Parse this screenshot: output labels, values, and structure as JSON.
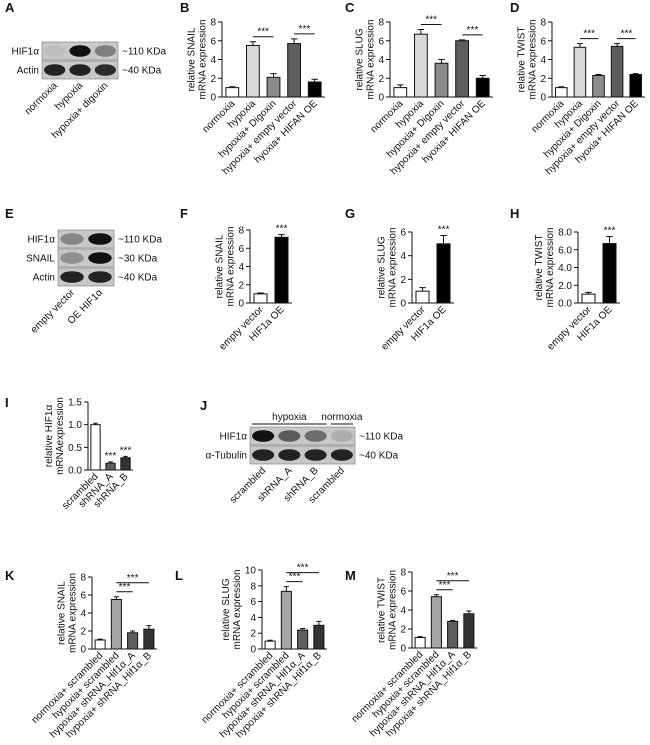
{
  "chart_data": [
    {
      "type": "bar",
      "panel": "B",
      "ylabel": [
        "relative SNAIL",
        "mRNA expression"
      ],
      "categories": [
        "normoxia",
        "hypoxia",
        "hypoxia+ Digoxin",
        "hypoxia+ empty vector",
        "hyoxia+ HIFAN OE"
      ],
      "values": [
        1.0,
        5.5,
        2.1,
        5.7,
        1.6
      ],
      "errors": [
        0.1,
        0.4,
        0.4,
        0.5,
        0.3
      ],
      "colors": [
        "#ffffff",
        "#d9d9d9",
        "#8c8c8c",
        "#5e5e5e",
        "#000000"
      ],
      "ylim": [
        0,
        8
      ],
      "yticks": [
        0,
        2,
        4,
        6,
        8
      ],
      "annotations": [
        {
          "text": "***",
          "categories": [
            1,
            2
          ]
        },
        {
          "text": "***",
          "categories": [
            3,
            4
          ]
        }
      ]
    },
    {
      "type": "bar",
      "panel": "C",
      "ylabel": [
        "relative SLUG",
        "mRNA expression"
      ],
      "categories": [
        "normoxia",
        "hypoxia",
        "hypoxia+ Digoxin",
        "hypoxia+ empty vector",
        "hyoxia+ HIFAN OE"
      ],
      "values": [
        1.0,
        6.7,
        3.6,
        6.0,
        2.0
      ],
      "errors": [
        0.3,
        0.5,
        0.4,
        0.1,
        0.3
      ],
      "colors": [
        "#ffffff",
        "#d9d9d9",
        "#8c8c8c",
        "#5e5e5e",
        "#000000"
      ],
      "ylim": [
        0,
        8
      ],
      "yticks": [
        0,
        2,
        4,
        6,
        8
      ],
      "annotations": [
        {
          "text": "***",
          "categories": [
            1,
            2
          ]
        },
        {
          "text": "***",
          "categories": [
            3,
            4
          ]
        }
      ]
    },
    {
      "type": "bar",
      "panel": "D",
      "ylabel": [
        "relative TWIST",
        "mRNA expression"
      ],
      "categories": [
        "normoxia",
        "hypoxia",
        "hypoxia+ Digoxin",
        "hypoxia+ empty vector",
        "hyoxia+ HIFAN OE"
      ],
      "values": [
        1.0,
        5.3,
        2.3,
        5.4,
        2.4
      ],
      "errors": [
        0.1,
        0.4,
        0.1,
        0.3,
        0.1
      ],
      "colors": [
        "#ffffff",
        "#d9d9d9",
        "#8c8c8c",
        "#5e5e5e",
        "#000000"
      ],
      "ylim": [
        0,
        8
      ],
      "yticks": [
        0,
        2,
        4,
        6,
        8
      ],
      "annotations": [
        {
          "text": "***",
          "categories": [
            1,
            2
          ]
        },
        {
          "text": "***",
          "categories": [
            3,
            4
          ]
        }
      ]
    },
    {
      "type": "bar",
      "panel": "F",
      "ylabel": [
        "relative SNAIL",
        "mRNA expression"
      ],
      "categories": [
        "empty vector",
        "HIF1a OE"
      ],
      "values": [
        1.0,
        7.2
      ],
      "errors": [
        0.1,
        0.3
      ],
      "colors": [
        "#ffffff",
        "#000000"
      ],
      "ylim": [
        0,
        8
      ],
      "yticks": [
        0,
        2,
        4,
        6,
        8
      ],
      "annotations": [
        {
          "text": "***",
          "categories": [
            1
          ]
        }
      ]
    },
    {
      "type": "bar",
      "panel": "G",
      "ylabel": [
        "relative SLUG",
        "mRNA expression"
      ],
      "categories": [
        "empty vector",
        "HIF1a OE"
      ],
      "values": [
        1.0,
        5.0
      ],
      "errors": [
        0.3,
        0.7
      ],
      "colors": [
        "#ffffff",
        "#000000"
      ],
      "ylim": [
        0,
        6
      ],
      "yticks": [
        0,
        2,
        4,
        6
      ],
      "annotations": [
        {
          "text": "***",
          "categories": [
            1
          ]
        }
      ]
    },
    {
      "type": "bar",
      "panel": "H",
      "ylabel": [
        "relative TWIST",
        "mRNA expression"
      ],
      "categories": [
        "empty vector",
        "HIF1a OE"
      ],
      "values": [
        1.0,
        6.7
      ],
      "errors": [
        0.2,
        0.8
      ],
      "colors": [
        "#ffffff",
        "#000000"
      ],
      "ylim": [
        0,
        8
      ],
      "yticks": [
        {
          "value": 0,
          "label": "0.0"
        },
        {
          "value": 2,
          "label": "2.0"
        },
        {
          "value": 4,
          "label": "4.0"
        },
        {
          "value": 6,
          "label": "6.0"
        },
        {
          "value": 8,
          "label": "8.0"
        }
      ],
      "annotations": [
        {
          "text": "***",
          "categories": [
            1
          ]
        }
      ]
    },
    {
      "type": "bar",
      "panel": "I",
      "ylabel": [
        "relative HIF1α",
        "mRNAexpression"
      ],
      "categories": [
        "scrambled",
        "shRNA_A",
        "shRNA_B"
      ],
      "values": [
        1.0,
        0.15,
        0.27
      ],
      "errors": [
        0.03,
        0.03,
        0.03
      ],
      "colors": [
        "#ffffff",
        "#5e5e5e",
        "#333333"
      ],
      "ylim": [
        0,
        1.5
      ],
      "yticks": [
        {
          "value": 0,
          "label": "0.0"
        },
        {
          "value": 0.5,
          "label": "0.5"
        },
        {
          "value": 1,
          "label": "1.0"
        },
        {
          "value": 1.5,
          "label": "1.5"
        }
      ],
      "annotations": [
        {
          "text": "***",
          "categories": [
            1
          ]
        },
        {
          "text": "***",
          "categories": [
            2
          ]
        }
      ]
    },
    {
      "type": "bar",
      "panel": "K",
      "ylabel": [
        "relative SNAIL",
        "mRNA expression"
      ],
      "categories": [
        "normoxia+ scrambled",
        "hypoxia+ scrambled",
        "hypoxia+ shRNA_Hif1α_A",
        "hypoxia+ shRNA_Hif1α_B"
      ],
      "values": [
        1.0,
        5.5,
        1.8,
        2.2
      ],
      "errors": [
        0.1,
        0.3,
        0.2,
        0.4
      ],
      "colors": [
        "#ffffff",
        "#a6a6a6",
        "#5e5e5e",
        "#333333"
      ],
      "ylim": [
        0,
        8
      ],
      "yticks": [
        0,
        2,
        4,
        6,
        8
      ],
      "annotations": [
        {
          "text": "***",
          "categories": [
            1,
            2
          ]
        },
        {
          "text": "***",
          "categories": [
            1,
            3
          ]
        }
      ]
    },
    {
      "type": "bar",
      "panel": "L",
      "ylabel": [
        "relative SLUG",
        "mRNA expression"
      ],
      "categories": [
        "normoxia+ scrambled",
        "hypoxia+ scrambled",
        "hypoxia+ shRNA_Hif1α_A",
        "hypoxia+ shRNA_Hif1α_B"
      ],
      "values": [
        1.0,
        7.3,
        2.4,
        3.0
      ],
      "errors": [
        0.1,
        0.6,
        0.2,
        0.5
      ],
      "colors": [
        "#ffffff",
        "#a6a6a6",
        "#5e5e5e",
        "#333333"
      ],
      "ylim": [
        0,
        10
      ],
      "yticks": [
        0,
        2,
        4,
        6,
        8,
        10
      ],
      "annotations": [
        {
          "text": "***",
          "categories": [
            1,
            2
          ]
        },
        {
          "text": "***",
          "categories": [
            1,
            3
          ]
        }
      ]
    },
    {
      "type": "bar",
      "panel": "M",
      "ylabel": [
        "relative TWIST",
        "mRNA expression"
      ],
      "categories": [
        "normoxia+ scrambled",
        "hypoxia+ scrambled",
        "hypoxia+ shRNA_Hif1α_A",
        "hypoxia+ shRNA_Hif1α_B"
      ],
      "values": [
        1.1,
        5.4,
        2.8,
        3.6
      ],
      "errors": [
        0.1,
        0.2,
        0.1,
        0.3
      ],
      "colors": [
        "#ffffff",
        "#a6a6a6",
        "#5e5e5e",
        "#333333"
      ],
      "ylim": [
        0,
        8
      ],
      "yticks": [
        0,
        2,
        4,
        6,
        8
      ],
      "annotations": [
        {
          "text": "***",
          "categories": [
            1,
            2
          ]
        },
        {
          "text": "***",
          "categories": [
            1,
            3
          ]
        }
      ]
    }
  ],
  "blots": [
    {
      "panel": "A",
      "rows": [
        "HIF1α",
        "Actin"
      ],
      "sizes": [
        "~110 KDa",
        "~40 KDa"
      ],
      "lanes": [
        "normoxia",
        "hypoxia",
        "hypoxia+ digoxin"
      ]
    },
    {
      "panel": "E",
      "rows": [
        "HIF1α",
        "SNAIL",
        "Actin"
      ],
      "sizes": [
        "~110 KDa",
        "~30 KDa",
        "~40 KDa"
      ],
      "lanes": [
        "empty vector",
        "OE HIF1α"
      ]
    },
    {
      "panel": "J",
      "rows": [
        "HIF1α",
        "α-Tubulin"
      ],
      "sizes": [
        "~110 KDa",
        "~40 KDa"
      ],
      "lanes": [
        "scrambled",
        "shRNA_A",
        "shRNA_B",
        "scrambled"
      ],
      "groups": [
        "hypoxia",
        "normoxia"
      ]
    }
  ]
}
